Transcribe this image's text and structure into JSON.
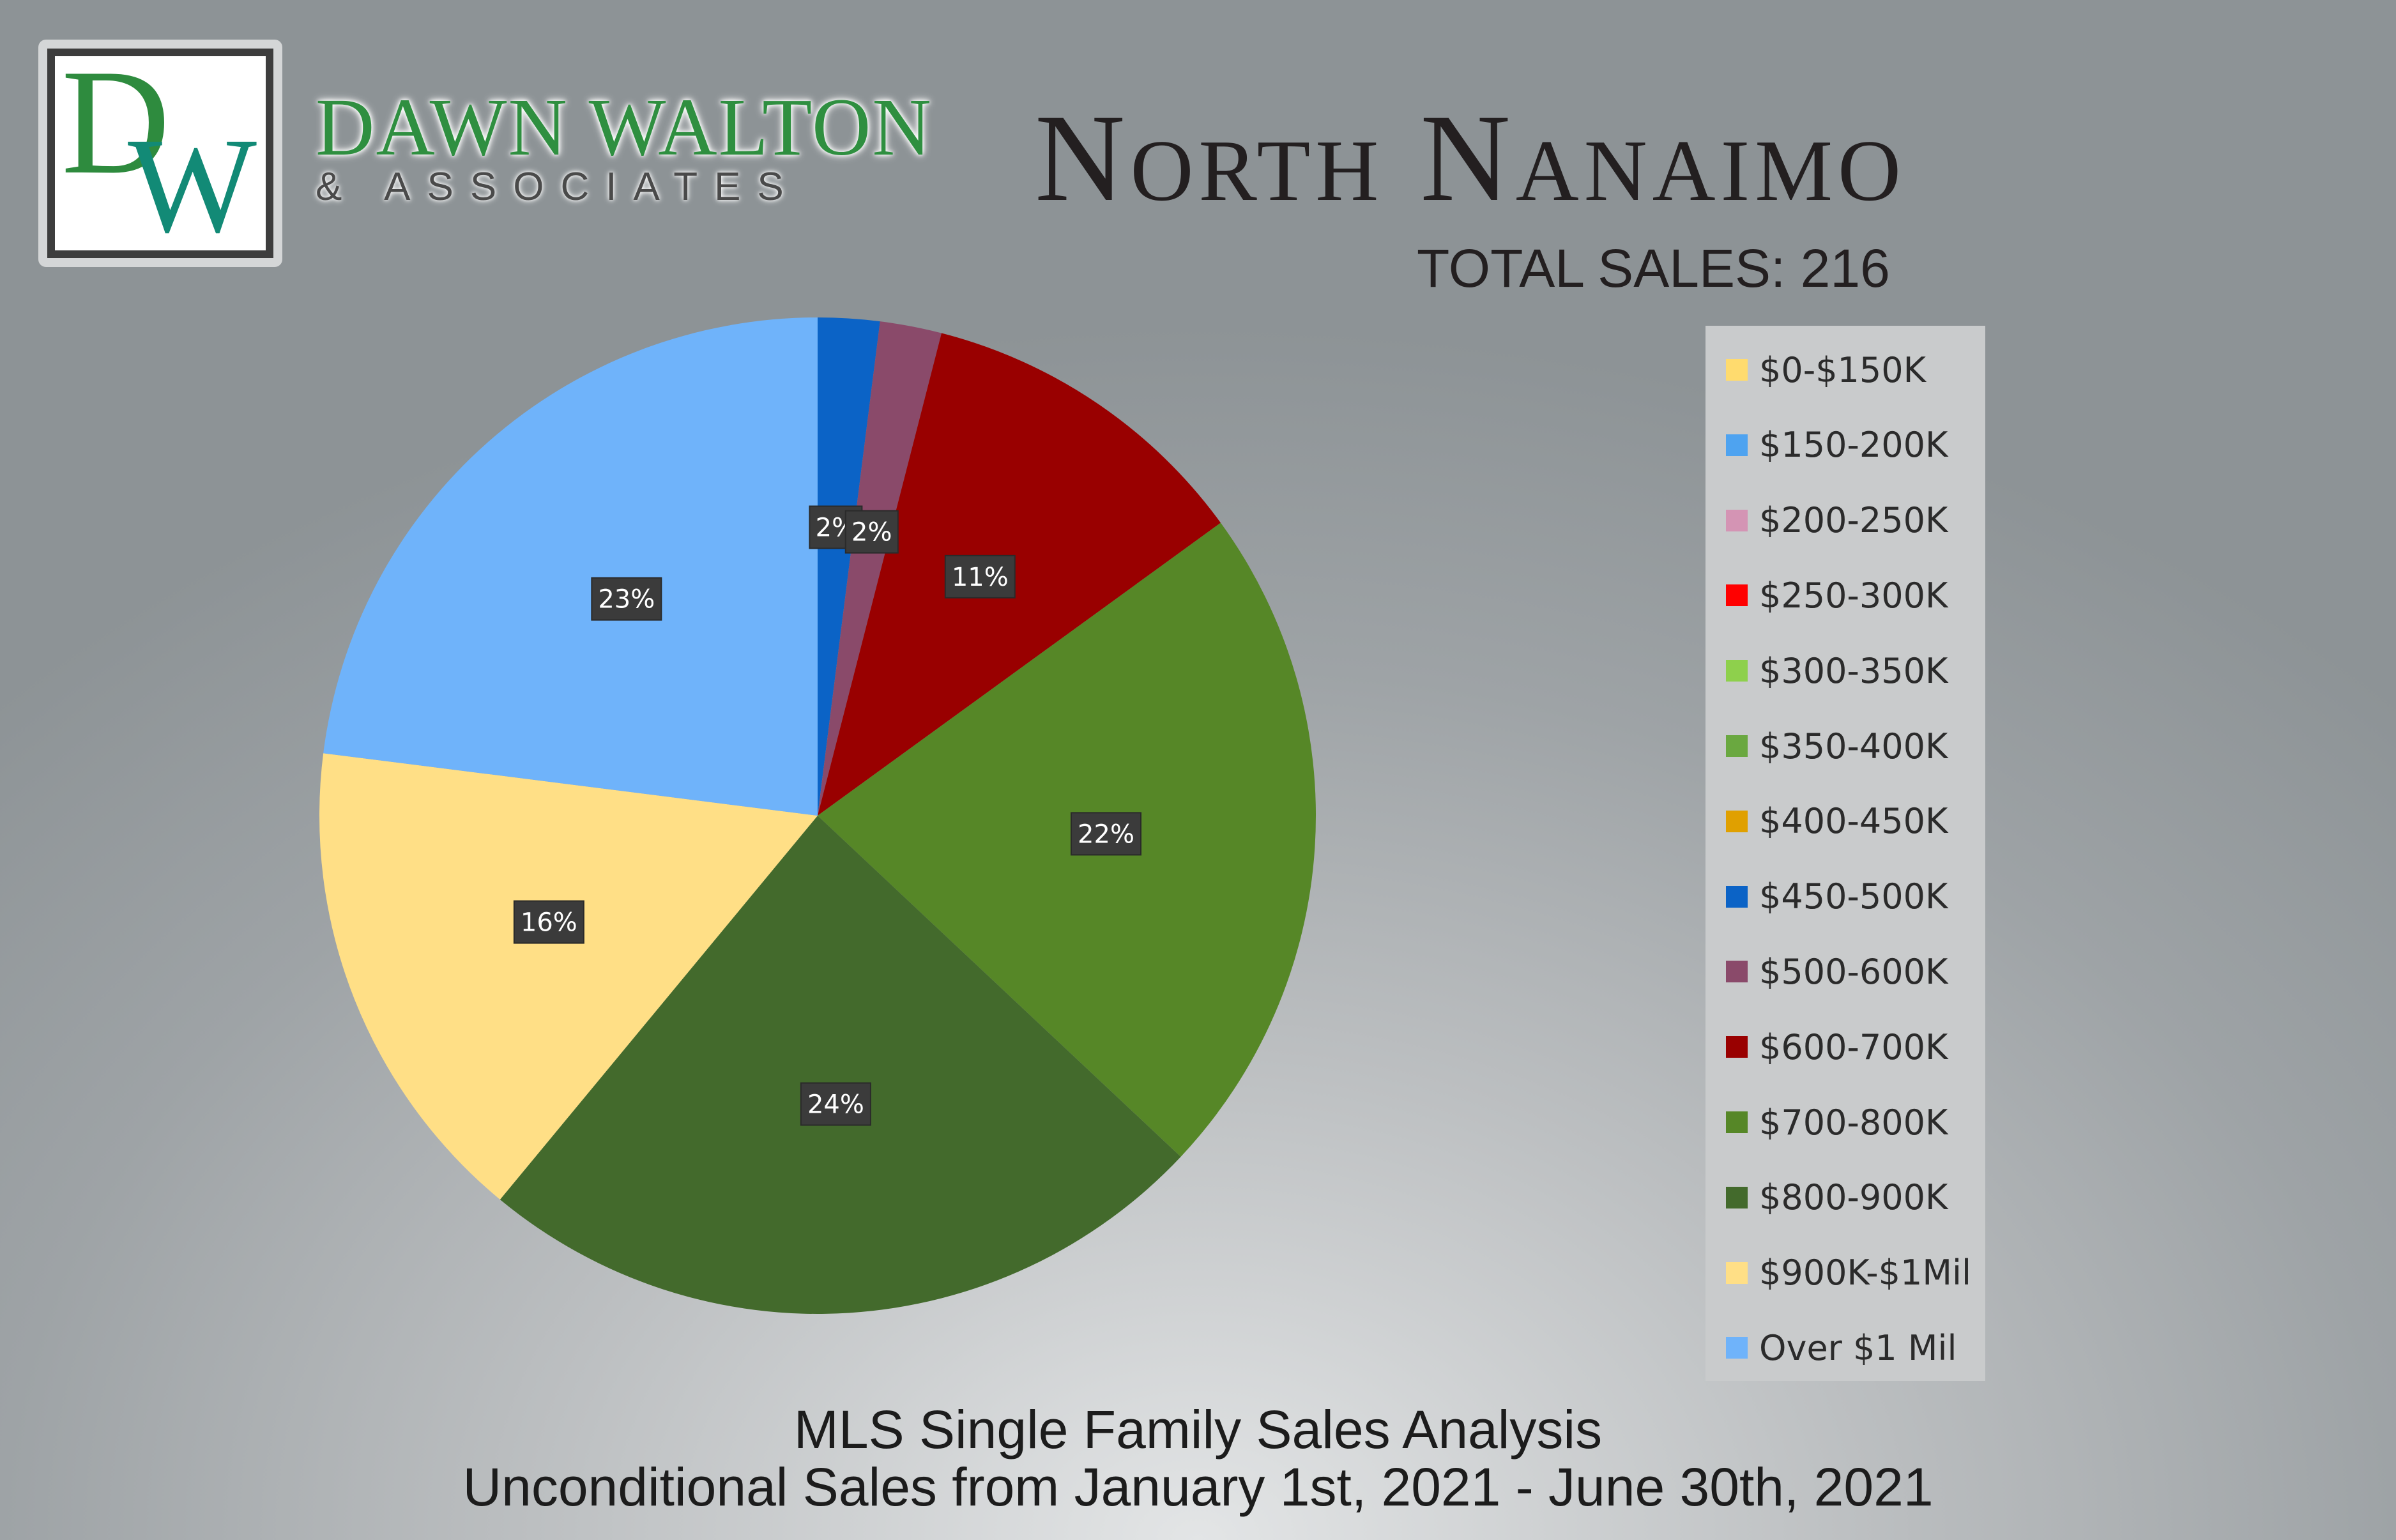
{
  "logo": {
    "monogram_d": "D",
    "monogram_w": "W",
    "name": "DAWN WALTON",
    "subname": "& ASSOCIATES"
  },
  "header": {
    "title": "North Nanaimo",
    "subtitle": "TOTAL SALES: 216"
  },
  "footer": {
    "line1": "MLS Single Family Sales Analysis",
    "line2": "Unconditional Sales from January 1st, 2021 - June 30th, 2021"
  },
  "chart_data": {
    "type": "pie",
    "start_angle_deg": 0,
    "direction": "clockwise",
    "legend_position": "right",
    "slices": [
      {
        "label": "$0-$150K",
        "value": 0,
        "color": "#ffdb6e"
      },
      {
        "label": "$150-200K",
        "value": 0,
        "color": "#4ea3f0"
      },
      {
        "label": "$200-250K",
        "value": 0,
        "color": "#d494b4"
      },
      {
        "label": "$250-300K",
        "value": 0,
        "color": "#ff0000"
      },
      {
        "label": "$300-350K",
        "value": 0,
        "color": "#8ed04c"
      },
      {
        "label": "$350-400K",
        "value": 0,
        "color": "#6aa840"
      },
      {
        "label": "$400-450K",
        "value": 0,
        "color": "#e0a000"
      },
      {
        "label": "$450-500K",
        "value": 2,
        "color": "#0b63c6",
        "data_label": "2%"
      },
      {
        "label": "$500-600K",
        "value": 2,
        "color": "#8a4a6a",
        "data_label": "2%"
      },
      {
        "label": "$600-700K",
        "value": 11,
        "color": "#990000",
        "data_label": "11%"
      },
      {
        "label": "$700-800K",
        "value": 22,
        "color": "#568727",
        "data_label": "22%"
      },
      {
        "label": "$800-900K",
        "value": 24,
        "color": "#436a2c",
        "data_label": "24%"
      },
      {
        "label": "$900K-$1Mil",
        "value": 16,
        "color": "#ffdf86",
        "data_label": "16%"
      },
      {
        "label": "Over $1 Mil",
        "value": 23,
        "color": "#6fb3fa",
        "data_label": "23%"
      }
    ]
  }
}
